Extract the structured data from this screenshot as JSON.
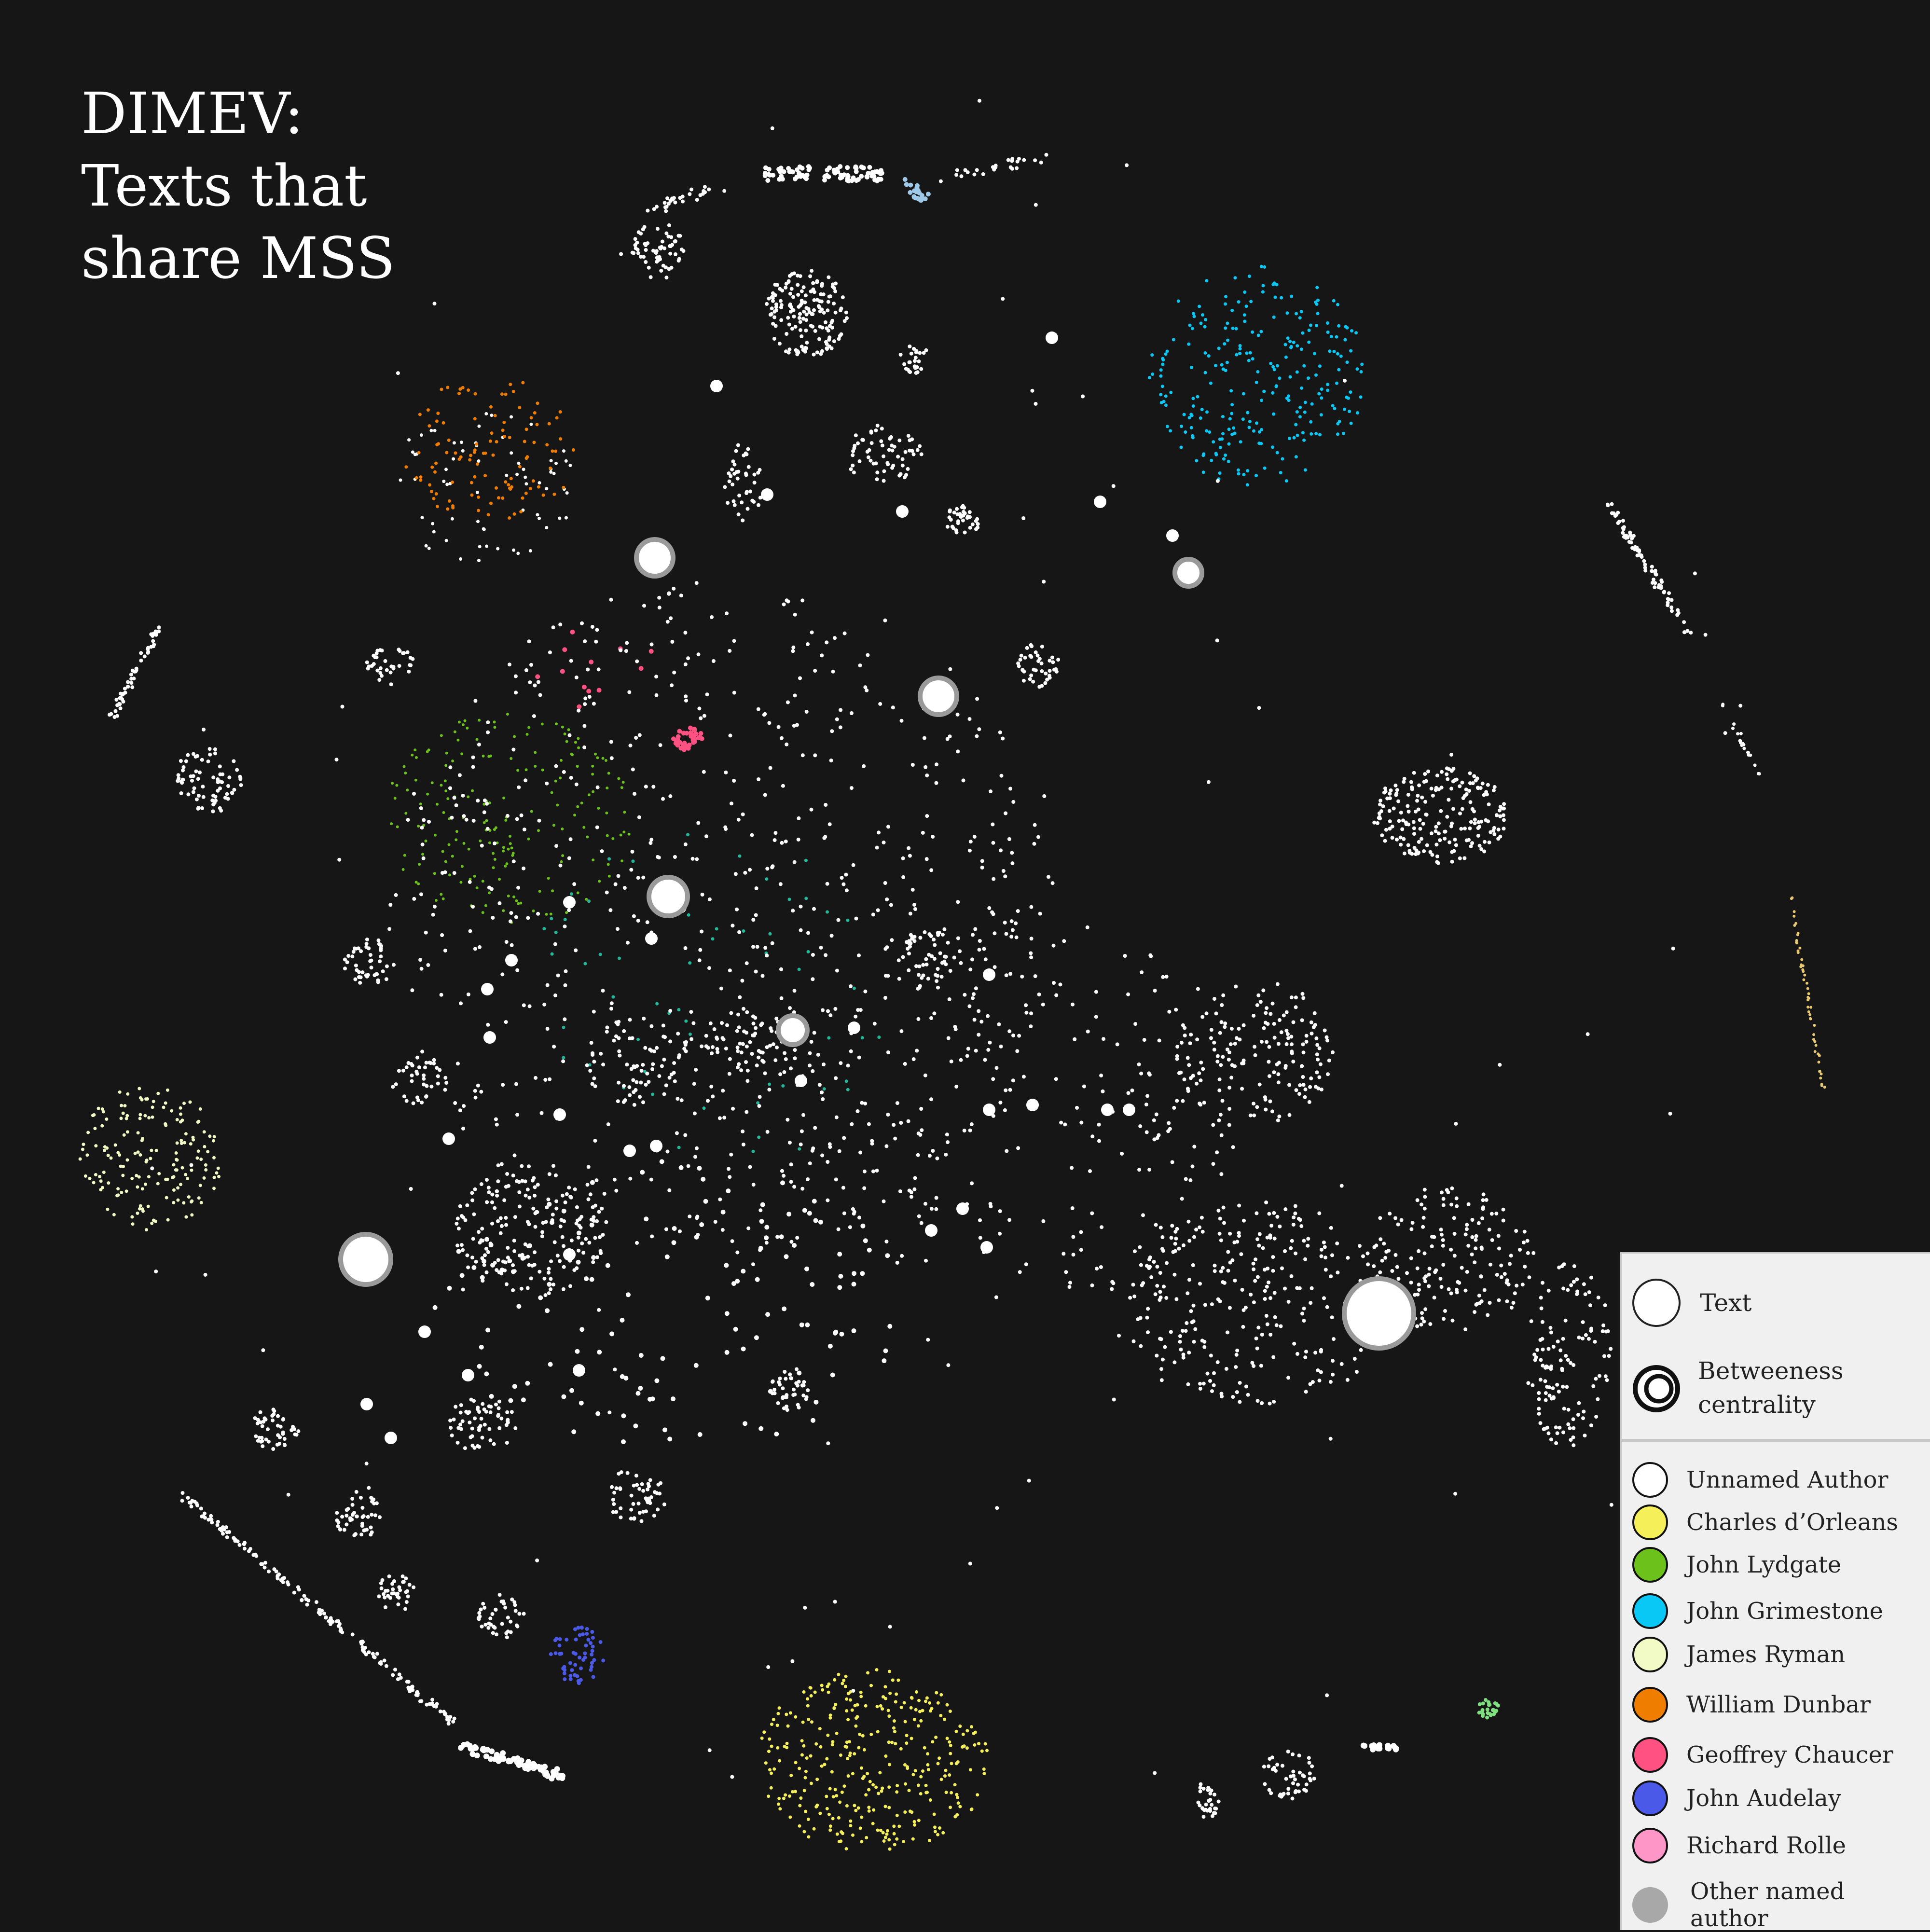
{
  "title_lines": [
    "DIMEV:",
    "Texts that",
    "share MSS"
  ],
  "legend": {
    "size_items": [
      {
        "label": "Text",
        "icon": "circle-outline-icon"
      },
      {
        "label": "Betweeness centrality",
        "icon": "concentric-circle-icon"
      }
    ],
    "authors": [
      {
        "label": "Unnamed Author",
        "color": "#ffffff"
      },
      {
        "label": "Charles d’Orleans",
        "color": "#f5f05a"
      },
      {
        "label": "John Lydgate",
        "color": "#6cc11a"
      },
      {
        "label": "John Grimestone",
        "color": "#0ac8f5"
      },
      {
        "label": "James Ryman",
        "color": "#f2fbc6"
      },
      {
        "label": "William Dunbar",
        "color": "#ef7d00"
      },
      {
        "label": "Geoffrey Chaucer",
        "color": "#ff5283"
      },
      {
        "label": "John Audelay",
        "color": "#4b59e8"
      },
      {
        "label": "Richard Rolle",
        "color": "#ff96c8"
      },
      {
        "label": "Other named author",
        "color": "#a8a8a8"
      }
    ]
  },
  "chart_data": {
    "type": "network",
    "clusters": [
      {
        "author": "John Grimestone",
        "color": "#0ac8f5",
        "count": 260
      },
      {
        "author": "William Dunbar",
        "color": "#ef7d00",
        "count": 110
      },
      {
        "author": "John Lydgate",
        "color": "#6cc11a",
        "count": 190
      },
      {
        "author": "James Ryman",
        "color": "#f2fbc6",
        "count": 170
      },
      {
        "author": "Charles d’Orleans",
        "color": "#f5f05a",
        "count": 330
      },
      {
        "author": "John Audelay",
        "color": "#4b59e8",
        "count": 55
      },
      {
        "author": "Geoffrey Chaucer",
        "color": "#ff5283",
        "count": 40
      }
    ]
  }
}
